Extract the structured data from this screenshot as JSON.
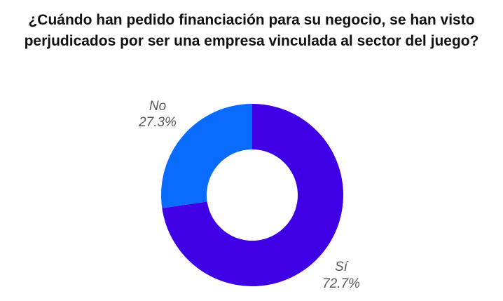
{
  "chart_data": {
    "type": "pie",
    "title_lines": [
      "¿Cuándo han pedido financiación para su negocio, se han visto",
      "perjudicados por ser una empresa vinculada al sector del juego?"
    ],
    "donut": true,
    "slices": [
      {
        "label": "Sí",
        "value": 72.7,
        "value_label": "72.7%",
        "color": "#3f00e6"
      },
      {
        "label": "No",
        "value": 27.3,
        "value_label": "27.3%",
        "color": "#0a6cff"
      }
    ]
  }
}
